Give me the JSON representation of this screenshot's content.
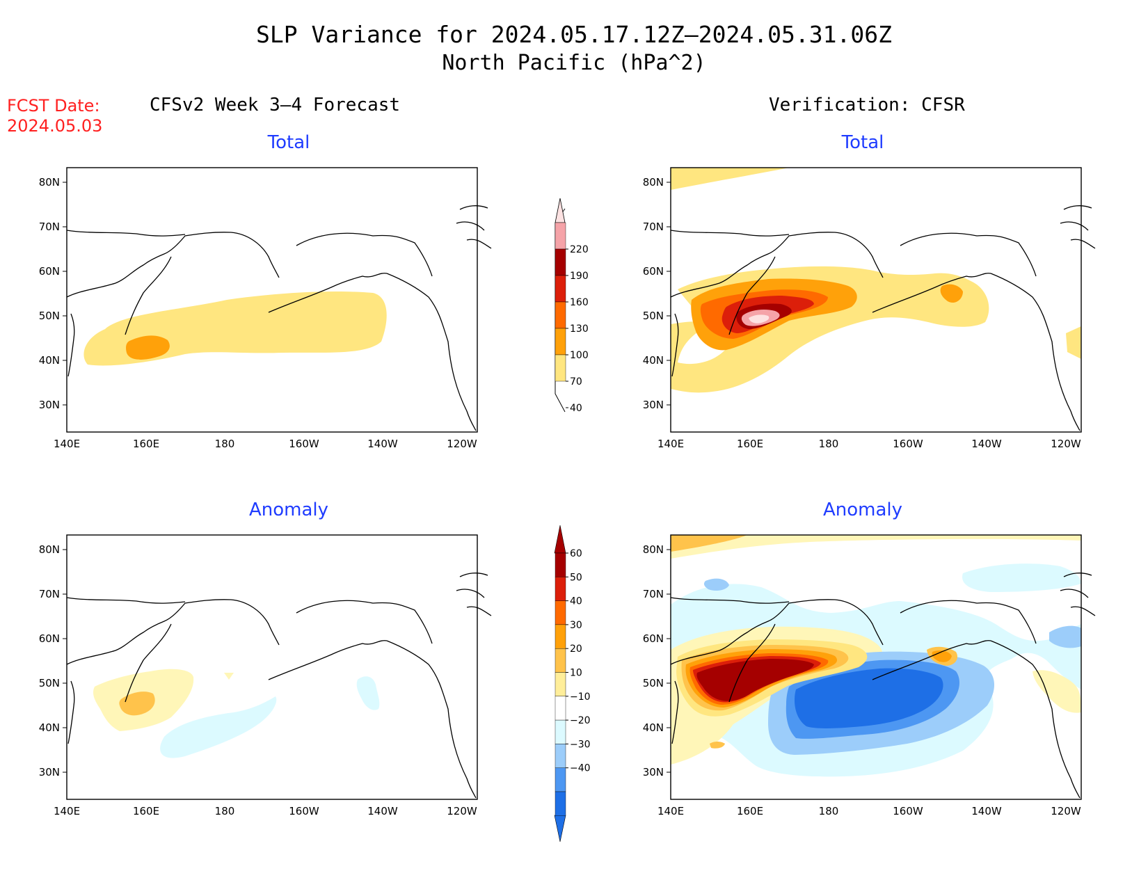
{
  "title": {
    "line1": "SLP Variance for 2024.05.17.12Z–2024.05.31.06Z",
    "line2": "North Pacific (hPa^2)"
  },
  "fcst": {
    "label": "FCST Date:",
    "date": "2024.05.03"
  },
  "columns": {
    "left": "CFSv2 Week 3–4 Forecast",
    "right": "Verification: CFSR"
  },
  "panels": {
    "forecast_total": "Total",
    "verification_total": "Total",
    "forecast_anomaly": "Anomaly",
    "verification_anomaly": "Anomaly"
  },
  "axes": {
    "lon_ticks": [
      "140E",
      "160E",
      "180",
      "160W",
      "140W",
      "120W"
    ],
    "lat_ticks": [
      "80N",
      "70N",
      "60N",
      "50N",
      "40N",
      "30N"
    ]
  },
  "colorbar_total": {
    "levels": [
      "220",
      "190",
      "160",
      "130",
      "100",
      "70",
      "40"
    ],
    "colors": [
      "#f5a3a8",
      "#a50000",
      "#dc1f0a",
      "#ff6a00",
      "#ffa10a",
      "#ffe680"
    ]
  },
  "colorbar_anomaly": {
    "levels": [
      "60",
      "50",
      "40",
      "30",
      "20",
      "10",
      "−10",
      "−20",
      "−30",
      "−40"
    ],
    "colors": [
      "#a50000",
      "#dc1f0a",
      "#ff6a00",
      "#ffa10a",
      "#ffc34b",
      "#ffee9a",
      "#ffffff",
      "#dcfaff",
      "#9ccdfa",
      "#4d97f2",
      "#1e6fe6"
    ]
  },
  "palette": {
    "yellow": "#ffe680",
    "light_orange": "#ffc34b",
    "orange": "#ffa10a",
    "dark_orange": "#ff6a00",
    "red": "#dc1f0a",
    "dark_red": "#a50000",
    "pink": "#f5a3a8",
    "light_pink": "#fde2e2",
    "pale_yellow": "#fff6b8",
    "pale_cyan": "#dcfaff",
    "light_blue": "#9ccdfa",
    "mid_blue": "#4d97f2",
    "deep_blue": "#1e6fe6"
  }
}
